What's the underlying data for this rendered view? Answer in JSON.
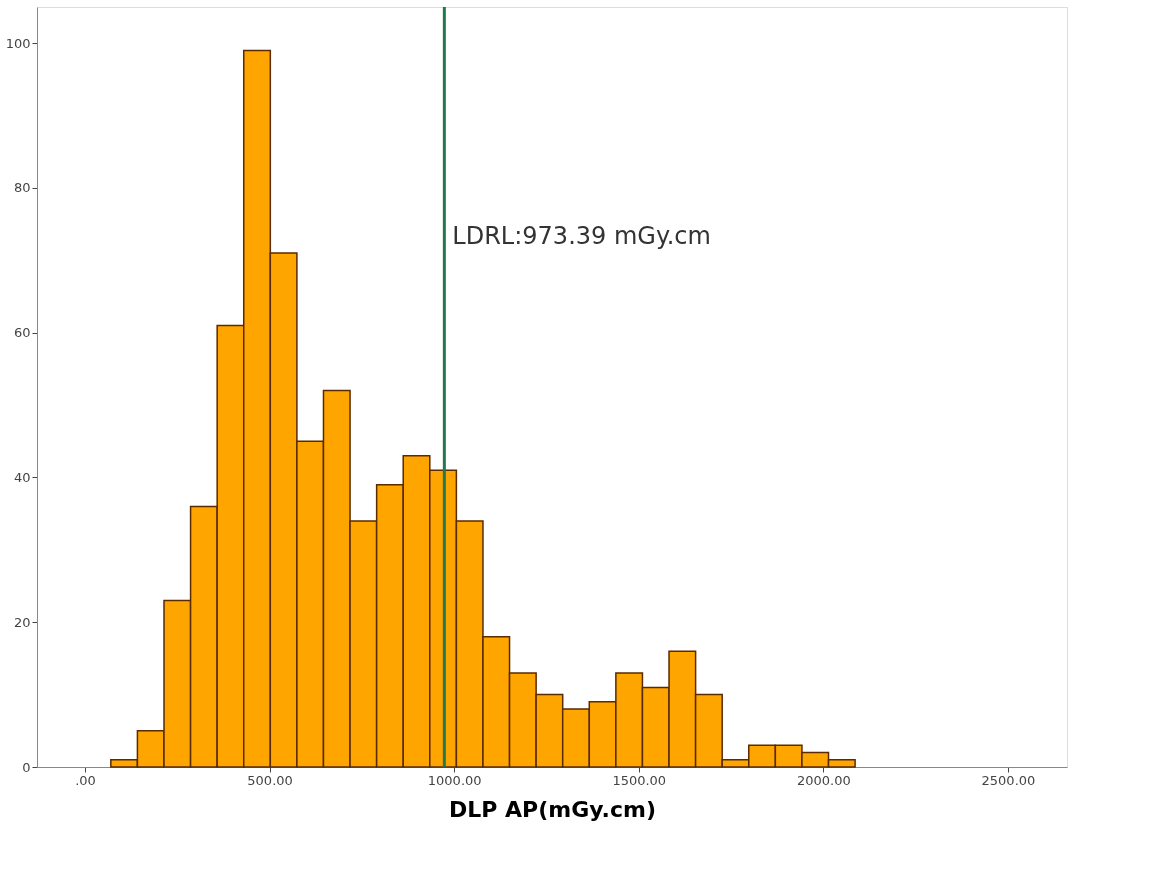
{
  "chart_data": {
    "type": "histogram",
    "xlabel": "DLP AP(mGy.cm)",
    "bins": [
      70,
      142,
      214,
      286,
      358,
      430,
      502,
      574,
      646,
      718,
      790,
      862,
      934,
      1006,
      1078,
      1150,
      1222,
      1294,
      1366,
      1438,
      1510,
      1582,
      1654,
      1726,
      1798,
      1870,
      1942,
      2014,
      2086
    ],
    "values": [
      1,
      5,
      23,
      36,
      61,
      99,
      71,
      45,
      52,
      34,
      39,
      43,
      41,
      34,
      18,
      13,
      10,
      8,
      9,
      13,
      11,
      16,
      10,
      1,
      3,
      3,
      2,
      1
    ],
    "color": "#ffa500",
    "xlim": [
      -130,
      2660
    ],
    "xticks": [
      {
        "value": 0,
        "label": ".00"
      },
      {
        "value": 500,
        "label": "500.00"
      },
      {
        "value": 1000,
        "label": "1000.00"
      },
      {
        "value": 1500,
        "label": "1500.00"
      },
      {
        "value": 2000,
        "label": "2000.00"
      },
      {
        "value": 2500,
        "label": "2500.00"
      }
    ],
    "ylim": [
      0,
      105
    ],
    "yticks": [
      0,
      20,
      40,
      60,
      80,
      100
    ],
    "ref_lines": [
      {
        "axis": "x",
        "value": 973.39,
        "label": "LDRL:973.39 mGy.cm",
        "color": "#1f7a4c"
      }
    ],
    "grid": false
  }
}
